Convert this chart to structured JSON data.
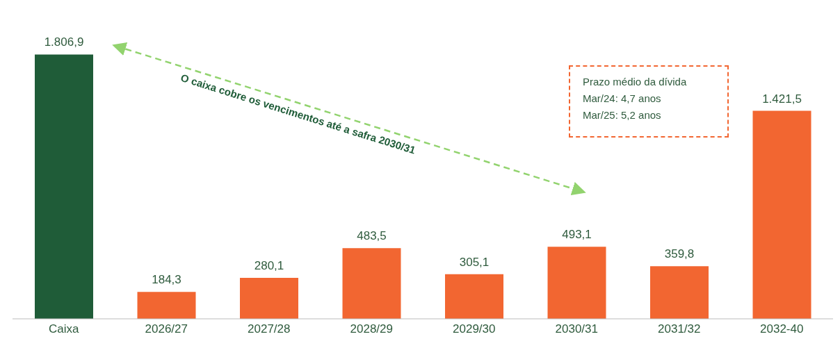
{
  "chart_data": {
    "type": "bar",
    "categories": [
      "Caixa",
      "2026/27",
      "2027/28",
      "2028/29",
      "2029/30",
      "2030/31",
      "2031/32",
      "2032-40"
    ],
    "values": [
      1806.9,
      184.3,
      280.1,
      483.5,
      305.1,
      493.1,
      359.8,
      1421.5
    ],
    "value_labels": [
      "1.806,9",
      "184,3",
      "280,1",
      "483,5",
      "305,1",
      "493,1",
      "359,8",
      "1.421,5"
    ],
    "colors": [
      "#1f5c38",
      "#f26631",
      "#f26631",
      "#f26631",
      "#f26631",
      "#f26631",
      "#f26631",
      "#f26631"
    ],
    "tick_labels": "x",
    "grid": false,
    "legend": false,
    "annotations": [
      "O caixa cobre os vencimentos até a safra 2030/31",
      "Prazo médio da dívida",
      "Mar/24: 4,7 anos",
      "Mar/25: 5,2 anos"
    ]
  }
}
